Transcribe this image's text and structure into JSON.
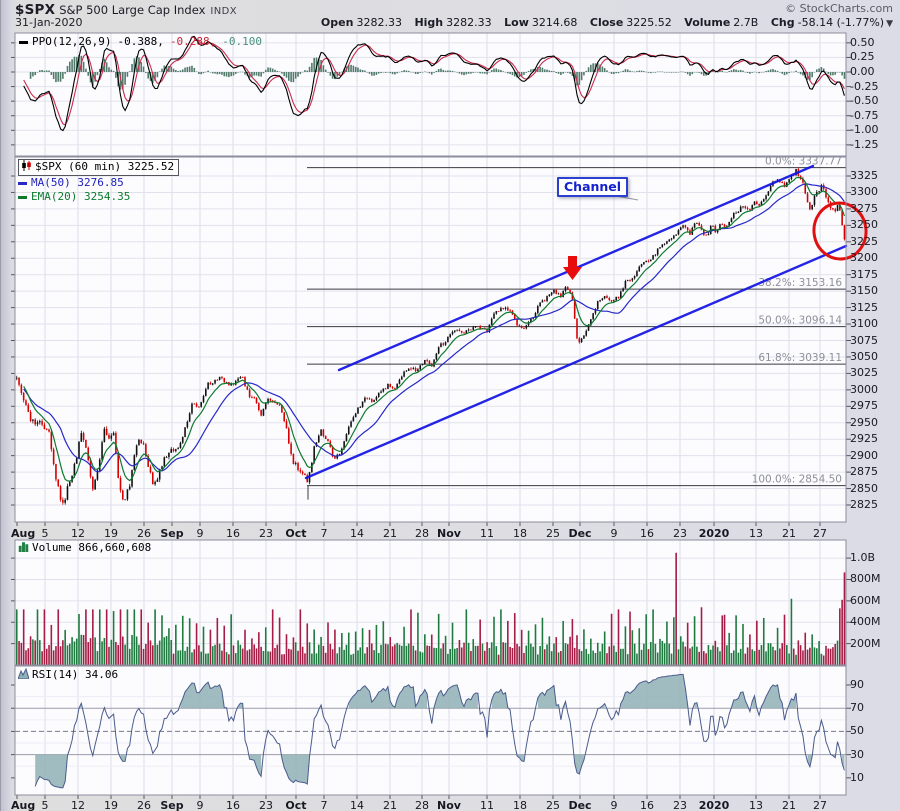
{
  "header": {
    "symbol": "$SPX",
    "name": "S&P 500 Large Cap Index",
    "exchange": "INDX",
    "copyright": "© StockCharts.com",
    "date": "31-Jan-2020",
    "quote": {
      "open_label": "Open",
      "open": "3282.33",
      "high_label": "High",
      "high": "3282.33",
      "low_label": "Low",
      "low": "3214.68",
      "close_label": "Close",
      "close": "3225.52",
      "volume_label": "Volume",
      "volume": "2.7B",
      "chg_label": "Chg",
      "chg": "-58.14 (-1.77%)",
      "chg_dir": "▼"
    }
  },
  "legends": {
    "ppo": {
      "label": "PPO(12,26,9)",
      "v1": "-0.388,",
      "v2": "-0.288,",
      "v3": "-0.100"
    },
    "main": {
      "symbol": "$SPX (60 min) 3225.52",
      "ma": "MA(50) 3276.85",
      "ema": "EMA(20) 3254.35"
    },
    "volume": {
      "label": "Volume 866,660,608"
    },
    "rsi": {
      "label": "RSI(14) 34.06"
    }
  },
  "annotations": {
    "channel_label": "Channel",
    "arrow_color": "#e80c0c",
    "circle_color": "#e01010"
  },
  "axes": {
    "ppo_ticks": [
      [
        "0.50",
        0.5
      ],
      [
        "0.25",
        0.25
      ],
      [
        "0.00",
        0
      ],
      [
        "-0.25",
        -0.25
      ],
      [
        "-0.50",
        -0.5
      ],
      [
        "-0.75",
        -0.75
      ],
      [
        "-1.00",
        -1
      ],
      [
        "-1.25",
        -1.25
      ]
    ],
    "price_axis": {
      "max": 3325,
      "min": 2825,
      "step": 25
    },
    "volume_ticks": [
      [
        "1.0B",
        1000
      ],
      [
        "800M",
        800
      ],
      [
        "600M",
        600
      ],
      [
        "400M",
        400
      ],
      [
        "200M",
        200
      ]
    ],
    "rsi_ticks": [
      [
        "90",
        90
      ],
      [
        "70",
        70
      ],
      [
        "50",
        50
      ],
      [
        "30",
        30
      ],
      [
        "10",
        10
      ]
    ],
    "date_ticks": [
      [
        "Aug",
        16,
        1
      ],
      [
        "5",
        44,
        0
      ],
      [
        "12",
        77,
        0
      ],
      [
        "19",
        110,
        0
      ],
      [
        "26",
        143,
        0
      ],
      [
        "Sep",
        171,
        1
      ],
      [
        "9",
        199,
        0
      ],
      [
        "16",
        232,
        0
      ],
      [
        "23",
        265,
        0
      ],
      [
        "Oct",
        295,
        1
      ],
      [
        "7",
        323,
        0
      ],
      [
        "14",
        356,
        0
      ],
      [
        "21",
        389,
        0
      ],
      [
        "28",
        421,
        0
      ],
      [
        "Nov",
        448,
        1
      ],
      [
        "11",
        486,
        0
      ],
      [
        "18",
        519,
        0
      ],
      [
        "25",
        552,
        0
      ],
      [
        "Dec",
        579,
        1
      ],
      [
        "9",
        613,
        0
      ],
      [
        "16",
        646,
        0
      ],
      [
        "23",
        679,
        0
      ],
      [
        "2020",
        713,
        1
      ],
      [
        "13",
        755,
        0
      ],
      [
        "21",
        788,
        0
      ],
      [
        "27",
        819,
        0
      ]
    ]
  },
  "chart_data": {
    "type": "candlestick",
    "symbol": "$SPX",
    "timeframe": "60 min",
    "date_range": "01-Aug-2019 to 31-Jan-2020",
    "last_bar": {
      "open": 3282.33,
      "high": 3282.33,
      "low": 3214.68,
      "close": 3225.52,
      "volume": "2.7B",
      "chg": -58.14,
      "chg_pct": -1.77
    },
    "indicators": {
      "ppo": {
        "params": [
          12,
          26,
          9
        ],
        "last": [
          -0.388,
          -0.288,
          -0.1
        ],
        "range": [
          -1.25,
          0.5
        ]
      },
      "rsi": {
        "params": [
          14
        ],
        "last": 34.06,
        "overbought": 70,
        "oversold": 30,
        "mid": 50
      },
      "volume": {
        "last": 866660608,
        "axis_max_millions": 1000
      }
    },
    "overlays": {
      "sma": {
        "period": 50,
        "last": 3276.85,
        "color": "#2828c8"
      },
      "ema": {
        "period": 20,
        "last": 3254.35,
        "color": "#0e7a2e"
      }
    },
    "fib_levels": [
      {
        "label": "0.0%: 3337.77",
        "price": 3337.77
      },
      {
        "label": "38.2%: 3153.16",
        "price": 3153.16
      },
      {
        "label": "50.0%: 3096.14",
        "price": 3096.14
      },
      {
        "label": "61.8%: 3039.11",
        "price": 3039.11
      },
      {
        "label": "100.0%: 2854.50",
        "price": 2854.5
      }
    ],
    "channel": {
      "upper": [
        [
          338,
          370
        ],
        [
          812,
          166
        ]
      ],
      "lower": [
        [
          305,
          478
        ],
        [
          845,
          246
        ]
      ],
      "color": "#1414e6"
    },
    "price_path": [
      [
        16,
        3018
      ],
      [
        22,
        2990
      ],
      [
        30,
        2952
      ],
      [
        40,
        2948
      ],
      [
        48,
        2938
      ],
      [
        52,
        2890
      ],
      [
        57,
        2850
      ],
      [
        62,
        2824
      ],
      [
        68,
        2858
      ],
      [
        74,
        2888
      ],
      [
        80,
        2932
      ],
      [
        86,
        2902
      ],
      [
        92,
        2848
      ],
      [
        98,
        2885
      ],
      [
        103,
        2938
      ],
      [
        108,
        2928
      ],
      [
        113,
        2932
      ],
      [
        118,
        2848
      ],
      [
        123,
        2832
      ],
      [
        129,
        2858
      ],
      [
        136,
        2922
      ],
      [
        142,
        2918
      ],
      [
        147,
        2888
      ],
      [
        152,
        2852
      ],
      [
        158,
        2872
      ],
      [
        164,
        2898
      ],
      [
        171,
        2908
      ],
      [
        178,
        2912
      ],
      [
        184,
        2942
      ],
      [
        191,
        2978
      ],
      [
        199,
        2976
      ],
      [
        206,
        3008
      ],
      [
        213,
        3012
      ],
      [
        220,
        3022
      ],
      [
        227,
        3006
      ],
      [
        234,
        3010
      ],
      [
        241,
        3020
      ],
      [
        248,
        2992
      ],
      [
        254,
        2986
      ],
      [
        260,
        2962
      ],
      [
        266,
        2988
      ],
      [
        272,
        2982
      ],
      [
        279,
        2977
      ],
      [
        285,
        2942
      ],
      [
        291,
        2892
      ],
      [
        298,
        2880
      ],
      [
        303,
        2872
      ],
      [
        307,
        2856
      ],
      [
        313,
        2912
      ],
      [
        320,
        2938
      ],
      [
        327,
        2922
      ],
      [
        333,
        2892
      ],
      [
        340,
        2908
      ],
      [
        348,
        2946
      ],
      [
        356,
        2968
      ],
      [
        364,
        2988
      ],
      [
        371,
        2984
      ],
      [
        379,
        2997
      ],
      [
        387,
        3007
      ],
      [
        394,
        3000
      ],
      [
        401,
        3022
      ],
      [
        409,
        3034
      ],
      [
        416,
        3030
      ],
      [
        424,
        3046
      ],
      [
        431,
        3036
      ],
      [
        438,
        3066
      ],
      [
        446,
        3076
      ],
      [
        454,
        3092
      ],
      [
        462,
        3086
      ],
      [
        470,
        3093
      ],
      [
        478,
        3096
      ],
      [
        486,
        3090
      ],
      [
        494,
        3118
      ],
      [
        502,
        3126
      ],
      [
        509,
        3121
      ],
      [
        517,
        3096
      ],
      [
        523,
        3092
      ],
      [
        531,
        3108
      ],
      [
        539,
        3132
      ],
      [
        546,
        3140
      ],
      [
        553,
        3153
      ],
      [
        559,
        3141
      ],
      [
        565,
        3156
      ],
      [
        571,
        3140
      ],
      [
        577,
        3068
      ],
      [
        583,
        3082
      ],
      [
        590,
        3110
      ],
      [
        597,
        3134
      ],
      [
        604,
        3144
      ],
      [
        611,
        3134
      ],
      [
        618,
        3142
      ],
      [
        625,
        3166
      ],
      [
        632,
        3167
      ],
      [
        639,
        3190
      ],
      [
        646,
        3197
      ],
      [
        653,
        3204
      ],
      [
        660,
        3221
      ],
      [
        668,
        3226
      ],
      [
        676,
        3239
      ],
      [
        683,
        3249
      ],
      [
        689,
        3238
      ],
      [
        696,
        3256
      ],
      [
        701,
        3240
      ],
      [
        706,
        3231
      ],
      [
        711,
        3257
      ],
      [
        715,
        3237
      ],
      [
        720,
        3252
      ],
      [
        726,
        3246
      ],
      [
        732,
        3266
      ],
      [
        738,
        3274
      ],
      [
        743,
        3281
      ],
      [
        748,
        3274
      ],
      [
        753,
        3287
      ],
      [
        759,
        3282
      ],
      [
        765,
        3297
      ],
      [
        771,
        3316
      ],
      [
        777,
        3320
      ],
      [
        783,
        3309
      ],
      [
        789,
        3321
      ],
      [
        795,
        3333
      ],
      [
        800,
        3321
      ],
      [
        804,
        3302
      ],
      [
        808,
        3270
      ],
      [
        812,
        3287
      ],
      [
        817,
        3304
      ],
      [
        821,
        3309
      ],
      [
        825,
        3292
      ],
      [
        829,
        3282
      ],
      [
        833,
        3270
      ],
      [
        837,
        3284
      ],
      [
        840,
        3262
      ],
      [
        844,
        3220
      ]
    ],
    "volume_spikes_millions": [
      [
        572,
        430
      ],
      [
        630,
        500
      ],
      [
        676,
        1050
      ],
      [
        700,
        540
      ],
      [
        723,
        470
      ],
      [
        762,
        440
      ],
      [
        790,
        620
      ],
      [
        838,
        530
      ],
      [
        841,
        610
      ],
      [
        844,
        866
      ]
    ]
  }
}
